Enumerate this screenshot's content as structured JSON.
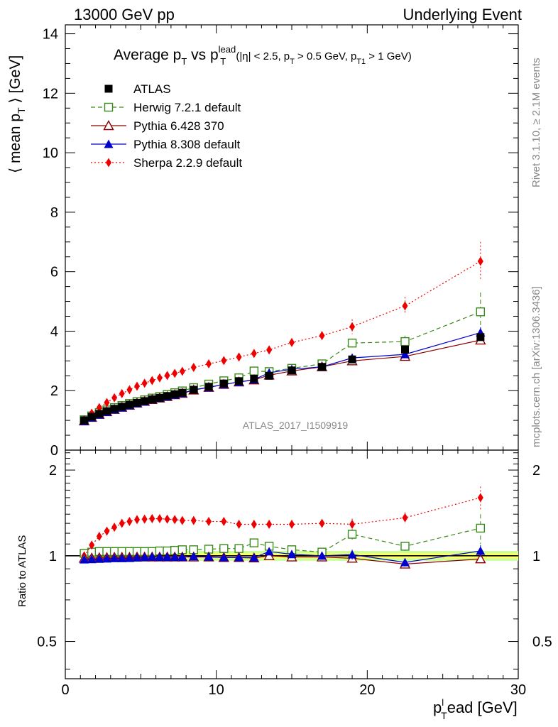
{
  "header": {
    "left": "13000 GeV pp",
    "right": "Underlying Event"
  },
  "side": {
    "top": "Rivet 3.1.10, ≥ 2.1M events",
    "bottom": "mcplots.cern.ch [arXiv:1306.3436]"
  },
  "watermark": "ATLAS_2017_I1509919",
  "title": {
    "main": "Average p",
    "sub_T": "T",
    "vs": " vs p",
    "sup_lead": "lead",
    "cuts_a": " (|η| < 2.5, p",
    "cuts_b": " > 0.5 GeV, p",
    "sub_T1": "T1",
    "cuts_c": " > 1 GeV)"
  },
  "axes": {
    "ylabel_main_a": "⟨ mean p",
    "ylabel_main_b": " ⟩ [GeV]",
    "ylabel_ratio": "Ratio to ATLAS",
    "xlabel_a": "p",
    "xlabel_sup": "l",
    "xlabel_b": "ead [GeV]",
    "sub_T": "T"
  },
  "colors": {
    "atlas": "#000000",
    "herwig": "#3a8a1a",
    "pythia6": "#8b0000",
    "pythia8": "#0000cc",
    "sherpa": "#ee0000",
    "band_inner": "#ffff66",
    "band_outer": "#ccff99"
  },
  "chart_data": [
    {
      "type": "scatter",
      "panel": "main",
      "xlim": [
        0,
        30
      ],
      "ylim": [
        0,
        14.3
      ],
      "yticks": [
        0,
        2,
        4,
        6,
        8,
        10,
        12,
        14
      ],
      "x": [
        1.25,
        1.75,
        2.25,
        2.75,
        3.25,
        3.75,
        4.25,
        4.75,
        5.25,
        5.75,
        6.25,
        6.75,
        7.25,
        7.75,
        8.5,
        9.5,
        10.5,
        11.5,
        12.5,
        13.5,
        15.0,
        17.0,
        19.0,
        22.5,
        27.5
      ],
      "legend": [
        "ATLAS",
        "Herwig 7.2.1 default",
        "Pythia 6.428 370",
        "Pythia 8.308 default",
        "Sherpa 2.2.9 default"
      ],
      "series": [
        {
          "name": "ATLAS",
          "key": "atlas",
          "marker": "square-filled",
          "values": [
            1.0,
            1.12,
            1.22,
            1.31,
            1.39,
            1.46,
            1.53,
            1.59,
            1.65,
            1.71,
            1.76,
            1.82,
            1.88,
            1.93,
            2.03,
            2.13,
            2.24,
            2.32,
            2.4,
            2.5,
            2.68,
            2.8,
            3.05,
            3.38,
            3.8
          ]
        },
        {
          "name": "Herwig 7.2.1 default",
          "key": "herwig",
          "marker": "square-open",
          "dash": "6,4",
          "values": [
            1.02,
            1.15,
            1.26,
            1.35,
            1.43,
            1.5,
            1.57,
            1.63,
            1.69,
            1.75,
            1.8,
            1.87,
            1.93,
            1.99,
            2.1,
            2.22,
            2.33,
            2.43,
            2.66,
            2.64,
            2.75,
            2.9,
            3.6,
            3.65,
            4.65
          ],
          "err": [
            0.02,
            0.02,
            0.02,
            0.02,
            0.02,
            0.02,
            0.02,
            0.02,
            0.02,
            0.02,
            0.02,
            0.02,
            0.02,
            0.02,
            0.03,
            0.03,
            0.04,
            0.05,
            0.06,
            0.08,
            0.08,
            0.1,
            0.15,
            0.2,
            0.65
          ]
        },
        {
          "name": "Pythia 6.428 370",
          "key": "pythia6",
          "marker": "triangle-open",
          "values": [
            0.98,
            1.1,
            1.2,
            1.29,
            1.37,
            1.44,
            1.51,
            1.58,
            1.64,
            1.7,
            1.75,
            1.8,
            1.86,
            1.91,
            2.02,
            2.11,
            2.21,
            2.29,
            2.36,
            2.52,
            2.66,
            2.8,
            3.0,
            3.15,
            3.7
          ],
          "err": [
            0.01,
            0.01,
            0.01,
            0.01,
            0.01,
            0.01,
            0.01,
            0.01,
            0.01,
            0.01,
            0.01,
            0.01,
            0.02,
            0.02,
            0.02,
            0.03,
            0.03,
            0.04,
            0.05,
            0.06,
            0.07,
            0.08,
            0.1,
            0.1,
            0.12
          ]
        },
        {
          "name": "Pythia 8.308 default",
          "key": "pythia8",
          "marker": "triangle-filled",
          "values": [
            0.97,
            1.09,
            1.19,
            1.28,
            1.36,
            1.43,
            1.5,
            1.57,
            1.63,
            1.7,
            1.75,
            1.8,
            1.86,
            1.91,
            2.03,
            2.11,
            2.21,
            2.29,
            2.37,
            2.6,
            2.72,
            2.8,
            3.1,
            3.22,
            3.95
          ],
          "err": [
            0.01,
            0.01,
            0.01,
            0.01,
            0.01,
            0.01,
            0.01,
            0.01,
            0.01,
            0.01,
            0.01,
            0.01,
            0.02,
            0.02,
            0.02,
            0.03,
            0.03,
            0.04,
            0.05,
            0.07,
            0.08,
            0.09,
            0.12,
            0.12,
            0.18
          ]
        },
        {
          "name": "Sherpa 2.2.9 default",
          "key": "sherpa",
          "marker": "diamond-filled",
          "dash": "2,3",
          "values": [
            1.0,
            1.24,
            1.43,
            1.6,
            1.76,
            1.9,
            2.03,
            2.15,
            2.25,
            2.34,
            2.43,
            2.51,
            2.58,
            2.65,
            2.78,
            2.9,
            3.01,
            3.13,
            3.25,
            3.37,
            3.62,
            3.85,
            4.15,
            4.85,
            6.35
          ],
          "err": [
            0.02,
            0.02,
            0.02,
            0.02,
            0.02,
            0.02,
            0.02,
            0.02,
            0.02,
            0.03,
            0.03,
            0.03,
            0.04,
            0.04,
            0.04,
            0.05,
            0.06,
            0.07,
            0.08,
            0.09,
            0.12,
            0.15,
            0.25,
            0.3,
            0.65
          ]
        }
      ]
    },
    {
      "type": "scatter",
      "panel": "ratio",
      "xlim": [
        0,
        30
      ],
      "ylim": [
        0.37,
        2.35
      ],
      "yscale": "log",
      "yticks": [
        0.5,
        1,
        2
      ],
      "xticks": [
        0,
        10,
        20,
        30
      ],
      "x": [
        1.25,
        1.75,
        2.25,
        2.75,
        3.25,
        3.75,
        4.25,
        4.75,
        5.25,
        5.75,
        6.25,
        6.75,
        7.25,
        7.75,
        8.5,
        9.5,
        10.5,
        11.5,
        12.5,
        13.5,
        15.0,
        17.0,
        19.0,
        22.5,
        27.5
      ],
      "band": {
        "inner": 0.02,
        "outer": 0.04
      },
      "series": [
        {
          "name": "Herwig 7.2.1 default",
          "key": "herwig",
          "marker": "square-open",
          "dash": "6,4",
          "values": [
            1.02,
            1.03,
            1.035,
            1.035,
            1.035,
            1.035,
            1.035,
            1.035,
            1.035,
            1.035,
            1.04,
            1.04,
            1.045,
            1.05,
            1.05,
            1.055,
            1.06,
            1.06,
            1.11,
            1.08,
            1.05,
            1.03,
            1.19,
            1.08,
            1.25
          ],
          "err": [
            0.01,
            0.01,
            0.01,
            0.01,
            0.01,
            0.01,
            0.01,
            0.01,
            0.01,
            0.01,
            0.01,
            0.01,
            0.01,
            0.01,
            0.01,
            0.01,
            0.02,
            0.02,
            0.02,
            0.03,
            0.03,
            0.03,
            0.05,
            0.04,
            0.15
          ]
        },
        {
          "name": "Pythia 6.428 370",
          "key": "pythia6",
          "marker": "triangle-open",
          "values": [
            0.98,
            0.982,
            0.984,
            0.986,
            0.988,
            0.988,
            0.988,
            0.99,
            0.99,
            0.99,
            0.99,
            0.99,
            0.99,
            0.99,
            0.99,
            0.99,
            0.986,
            0.986,
            0.982,
            1.0,
            0.99,
            0.99,
            0.98,
            0.935,
            0.975
          ],
          "err": [
            0.01,
            0.01,
            0.01,
            0.01,
            0.01,
            0.01,
            0.01,
            0.01,
            0.01,
            0.01,
            0.01,
            0.01,
            0.01,
            0.01,
            0.01,
            0.01,
            0.01,
            0.01,
            0.02,
            0.02,
            0.02,
            0.02,
            0.03,
            0.02,
            0.03
          ]
        },
        {
          "name": "Pythia 8.308 default",
          "key": "pythia8",
          "marker": "triangle-filled",
          "values": [
            0.97,
            0.972,
            0.975,
            0.977,
            0.98,
            0.98,
            0.981,
            0.985,
            0.988,
            0.992,
            0.99,
            0.99,
            0.99,
            0.99,
            0.995,
            0.992,
            0.986,
            0.986,
            0.985,
            1.035,
            1.012,
            1.0,
            1.01,
            0.948,
            1.04
          ],
          "err": [
            0.01,
            0.01,
            0.01,
            0.01,
            0.01,
            0.01,
            0.01,
            0.01,
            0.01,
            0.01,
            0.01,
            0.01,
            0.01,
            0.01,
            0.01,
            0.01,
            0.01,
            0.02,
            0.02,
            0.03,
            0.03,
            0.03,
            0.04,
            0.03,
            0.05
          ]
        },
        {
          "name": "Sherpa 2.2.9 default",
          "key": "sherpa",
          "marker": "diamond-filled",
          "dash": "2,3",
          "values": [
            1.0,
            1.09,
            1.17,
            1.22,
            1.26,
            1.3,
            1.32,
            1.34,
            1.345,
            1.35,
            1.35,
            1.345,
            1.34,
            1.33,
            1.33,
            1.32,
            1.32,
            1.29,
            1.29,
            1.29,
            1.29,
            1.3,
            1.29,
            1.36,
            1.6
          ],
          "err": [
            0.01,
            0.01,
            0.01,
            0.01,
            0.01,
            0.01,
            0.01,
            0.01,
            0.01,
            0.01,
            0.01,
            0.01,
            0.01,
            0.01,
            0.01,
            0.01,
            0.02,
            0.02,
            0.02,
            0.03,
            0.03,
            0.04,
            0.06,
            0.06,
            0.15
          ]
        }
      ]
    }
  ]
}
